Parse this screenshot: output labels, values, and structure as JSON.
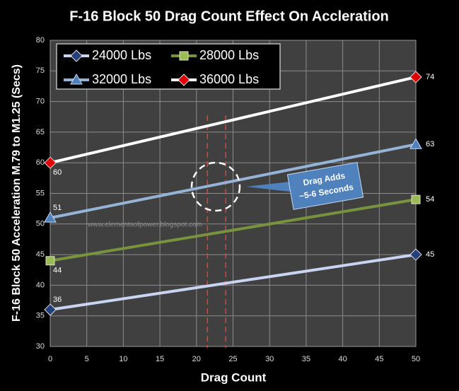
{
  "chart_data": {
    "type": "line",
    "title": "F-16 Block 50 Drag Count Effect On Accleration",
    "x_label": "Drag Count",
    "y_label": "F-16 Block 50 Acceleration  M.79 to M1.25 (Secs)",
    "x": [
      0,
      50
    ],
    "series": [
      {
        "name": "24000 Lbs",
        "color": "#c9d3f2",
        "marker": "diamond",
        "marker_color": "#243f7a",
        "values": [
          36,
          45
        ]
      },
      {
        "name": "28000 Lbs",
        "color": "#77933c",
        "marker": "square",
        "marker_color": "#9bbb59",
        "values": [
          44,
          54
        ]
      },
      {
        "name": "32000 Lbs",
        "color": "#95b3d7",
        "marker": "triangle",
        "marker_color": "#4f81bd",
        "values": [
          51,
          63
        ]
      },
      {
        "name": "36000 Lbs",
        "color": "#ffffff",
        "marker": "diamond",
        "marker_color": "#e00000",
        "values": [
          60,
          74
        ]
      }
    ],
    "xlim": [
      0,
      50
    ],
    "xticks": [
      0,
      5,
      10,
      15,
      20,
      25,
      30,
      35,
      40,
      45,
      50
    ],
    "ylim": [
      30,
      80
    ],
    "yticks": [
      30,
      35,
      40,
      45,
      50,
      55,
      60,
      65,
      70,
      75,
      80
    ],
    "grid": true,
    "legend": "upper left",
    "vlines": [
      21.5,
      24
    ],
    "annotation": [
      "Drag Adds",
      "~5-6 Seconds"
    ],
    "watermark": "www.elementsofpower.blogspot.com"
  }
}
